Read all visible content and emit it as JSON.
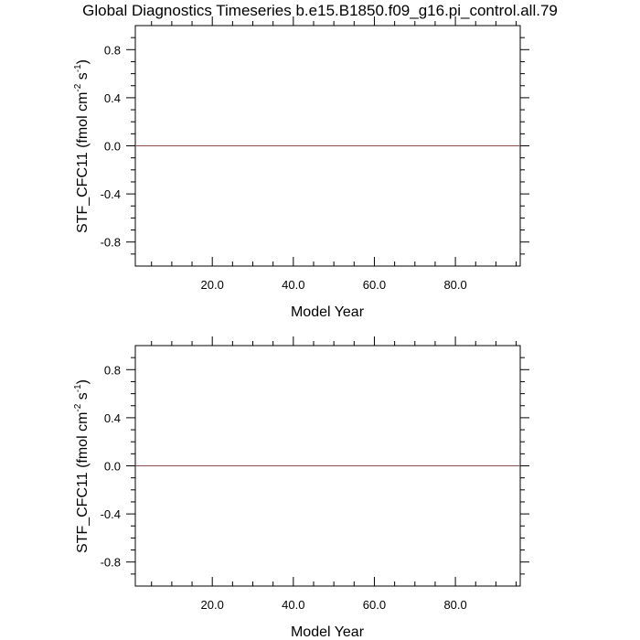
{
  "title": "Global Diagnostics Timeseries b.e15.B1850.f09_g16.pi_control.all.79",
  "colors": {
    "axis": "#000000",
    "series": "#8b4c4c"
  },
  "chart_data": [
    {
      "type": "line",
      "xlabel": "Model Year",
      "ylabel_base": "STF_CFC11 (fmol cm",
      "ylabel_exp1": "-2",
      "ylabel_mid": " s",
      "ylabel_exp2": "-1",
      "ylabel_end": ")",
      "xlim": [
        1,
        96
      ],
      "ylim": [
        -1.0,
        1.0
      ],
      "xticks": [
        20,
        40,
        60,
        80
      ],
      "xtick_labels": [
        "20.0",
        "40.0",
        "60.0",
        "80.0"
      ],
      "yticks": [
        -0.8,
        -0.4,
        0.0,
        0.4,
        0.8
      ],
      "ytick_labels": [
        "-0.8",
        "-0.4",
        "0.0",
        "0.4",
        "0.8"
      ],
      "zero_line": true,
      "grid": false,
      "series": [
        {
          "x": [
            1,
            96
          ],
          "y": [
            0.0,
            0.0
          ]
        }
      ]
    },
    {
      "type": "line",
      "xlabel": "Model Year",
      "ylabel_base": "STF_CFC11 (fmol cm",
      "ylabel_exp1": "-2",
      "ylabel_mid": " s",
      "ylabel_exp2": "-1",
      "ylabel_end": ")",
      "xlim": [
        1,
        96
      ],
      "ylim": [
        -1.0,
        1.0
      ],
      "xticks": [
        20,
        40,
        60,
        80
      ],
      "xtick_labels": [
        "20.0",
        "40.0",
        "60.0",
        "80.0"
      ],
      "yticks": [
        -0.8,
        -0.4,
        0.0,
        0.4,
        0.8
      ],
      "ytick_labels": [
        "-0.8",
        "-0.4",
        "0.0",
        "0.4",
        "0.8"
      ],
      "zero_line": true,
      "grid": false,
      "series": [
        {
          "x": [
            1,
            96
          ],
          "y": [
            0.0,
            0.0
          ]
        }
      ]
    }
  ]
}
